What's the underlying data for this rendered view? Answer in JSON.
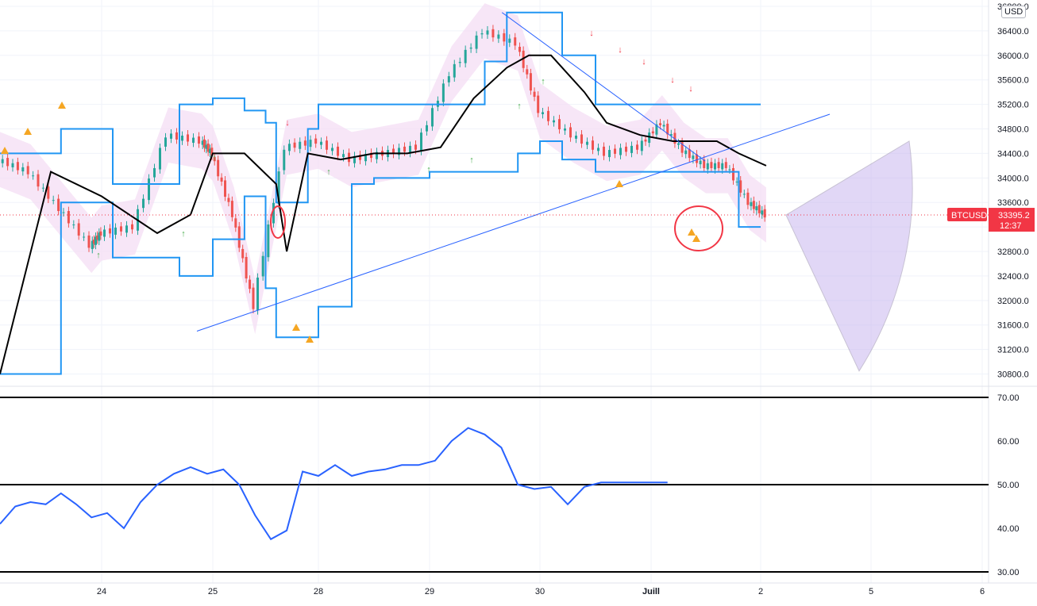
{
  "currency_label": "USD",
  "price_label": {
    "symbol": "BTCUSD",
    "price": "33395.2",
    "countdown": "12:37",
    "color": "#f23645"
  },
  "colors": {
    "candle_up": "#26a69a",
    "candle_down": "#ef5350",
    "channel_line": "#2196f3",
    "baseline": "#000000",
    "trendline": "#2962ff",
    "oscillator": "#2962ff",
    "cloud_fill": "#f3dcf3",
    "marker_annotation": "#f23645",
    "warning_marker": "#f5a623",
    "up_arrow": "#4caf50",
    "down_arrow": "#f23645"
  },
  "chart_data": [
    {
      "type": "line",
      "panel": "price",
      "y_axis_ticks": [
        "36800.0",
        "36400.0",
        "36000.0",
        "35600.0",
        "35200.0",
        "34800.0",
        "34400.0",
        "34000.0",
        "33600.0",
        "33200.0",
        "32800.0",
        "32400.0",
        "32000.0",
        "31600.0",
        "31200.0",
        "30800.0"
      ],
      "ylim": [
        30600,
        36800
      ],
      "x_ticks": [
        "24",
        "25",
        "28",
        "29",
        "30",
        "Juill",
        "2",
        "5",
        "6"
      ],
      "series": [
        {
          "role": "price_close",
          "x": [
            0,
            0.3,
            0.6,
            0.9,
            1.0,
            1.3,
            1.6,
            1.9,
            2.0,
            2.2,
            2.4,
            2.7,
            3.0,
            3.3,
            3.6,
            3.9,
            4.2,
            4.5,
            4.8,
            5.0,
            5.3,
            5.6,
            5.9,
            6.1,
            6.3,
            6.5,
            6.7,
            6.9,
            7.05
          ],
          "y": [
            34300,
            34100,
            33500,
            32900,
            33100,
            33200,
            34700,
            34600,
            34400,
            33400,
            31900,
            34500,
            34600,
            34300,
            34400,
            34500,
            35700,
            36400,
            36200,
            35100,
            34700,
            34400,
            34500,
            34900,
            34450,
            34200,
            34200,
            33600,
            33395.2
          ]
        },
        {
          "role": "baseline",
          "x": [
            0,
            0.5,
            1.0,
            1.5,
            1.8,
            2.0,
            2.3,
            2.6,
            2.7,
            2.9,
            3.2,
            3.5,
            3.8,
            4.1,
            4.4,
            4.7,
            4.9,
            5.1,
            5.4,
            5.6,
            5.9,
            6.2,
            6.4,
            6.6,
            6.8,
            7.05
          ],
          "y": [
            30800,
            34100,
            33700,
            33100,
            33400,
            34400,
            34400,
            33900,
            32800,
            34400,
            34300,
            34400,
            34400,
            34500,
            35300,
            35800,
            36000,
            36000,
            35400,
            34900,
            34700,
            34600,
            34600,
            34600,
            34400,
            34200
          ]
        },
        {
          "role": "channel_upper",
          "x": [
            0,
            0.5,
            0.6,
            1.0,
            1.1,
            1.5,
            1.7,
            2.0,
            2.3,
            2.5,
            2.6,
            2.9,
            3.0,
            3.3,
            3.5,
            3.8,
            4.0,
            4.2,
            4.5,
            4.7,
            4.8,
            5.0,
            5.2,
            5.5,
            5.7,
            6.0,
            6.3,
            6.5,
            6.8,
            7.0
          ],
          "y": [
            34400,
            34400,
            34800,
            34800,
            33900,
            33900,
            35200,
            35300,
            35100,
            34900,
            33600,
            34800,
            35200,
            35200,
            35200,
            35200,
            35200,
            35200,
            35900,
            36700,
            36700,
            36700,
            36000,
            35200,
            35200,
            35200,
            35200,
            35200,
            35200,
            35200
          ]
        },
        {
          "role": "channel_lower",
          "x": [
            0,
            0.5,
            0.6,
            1.0,
            1.1,
            1.5,
            1.7,
            2.0,
            2.3,
            2.5,
            2.6,
            2.9,
            3.0,
            3.3,
            3.5,
            3.8,
            4.0,
            4.2,
            4.5,
            4.7,
            4.8,
            5.0,
            5.2,
            5.5,
            5.7,
            6.0,
            6.3,
            6.5,
            6.8,
            7.0
          ],
          "y": [
            30800,
            30800,
            33600,
            33600,
            32700,
            32700,
            32400,
            33000,
            33700,
            32200,
            31400,
            31400,
            31900,
            33900,
            34000,
            34000,
            34100,
            34100,
            34100,
            34100,
            34400,
            34600,
            34300,
            34100,
            34100,
            34100,
            34100,
            34100,
            33200,
            33200
          ]
        }
      ],
      "annotations": {
        "trendline_support": {
          "x": [
            2.0,
            6.4
          ],
          "y": [
            31500,
            34800
          ]
        },
        "trendline_resistance": {
          "x": [
            4.8,
            6.9
          ],
          "y": [
            36700,
            34300
          ]
        },
        "projection_wedge": "purple forecast cone extending right from last price"
      }
    },
    {
      "type": "line",
      "panel": "oscillator",
      "y_axis_ticks": [
        "70.00",
        "60.00",
        "50.00",
        "40.00",
        "30.00"
      ],
      "ylim": [
        28,
        72
      ],
      "reference_lines": [
        70,
        50,
        30
      ],
      "series": [
        {
          "role": "oscillator",
          "x": [
            0,
            0.15,
            0.3,
            0.45,
            0.6,
            0.75,
            0.9,
            1.05,
            1.2,
            1.35,
            1.5,
            1.65,
            1.8,
            1.95,
            2.1,
            2.25,
            2.4,
            2.55,
            2.7,
            2.85,
            3.0,
            3.15,
            3.3,
            3.45,
            3.6,
            3.75,
            3.9,
            4.05,
            4.2,
            4.35,
            4.5,
            4.65,
            4.8,
            4.95,
            5.1,
            5.25,
            5.4,
            5.55,
            5.7,
            5.85,
            6.0,
            6.15
          ],
          "y": [
            41,
            45,
            46,
            45.5,
            48,
            45.5,
            42.5,
            43.5,
            40,
            46,
            50,
            52.5,
            54,
            52.5,
            53.5,
            50,
            43,
            37.5,
            39.5,
            53,
            52,
            54.5,
            52,
            53,
            53.5,
            54.5,
            54.5,
            55.5,
            60,
            63,
            61.5,
            58.5,
            50,
            49,
            49.5,
            45.5,
            49.5,
            50.5,
            50.5,
            50.5,
            50.5,
            50.5
          ]
        }
      ]
    }
  ]
}
